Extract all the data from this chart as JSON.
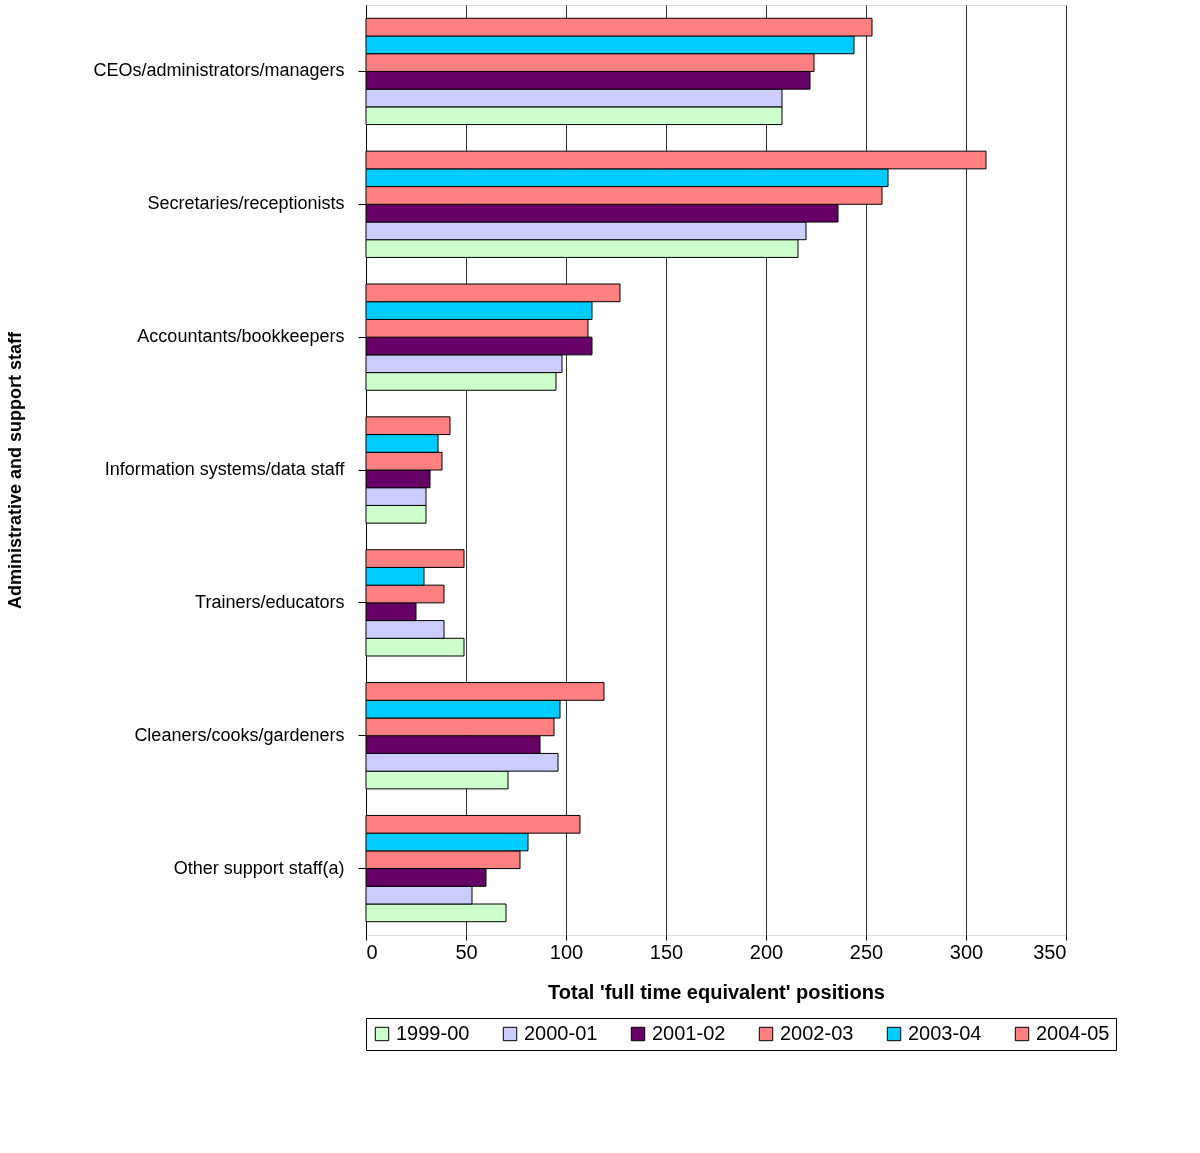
{
  "chart_data": {
    "type": "bar",
    "orientation": "horizontal",
    "xlabel": "Total 'full time equivalent' positions",
    "ylabel": "Administrative and support staff",
    "categories": [
      "CEOs/administrators/managers",
      "Secretaries/receptionists",
      "Accountants/bookkeepers",
      "Information systems/data staff",
      "Trainers/educators",
      "Cleaners/cooks/gardeners",
      "Other support staff(a)"
    ],
    "series": [
      {
        "name": "1999-00",
        "color": "#ccffcc",
        "values": [
          208,
          216,
          95,
          30,
          49,
          71,
          70
        ]
      },
      {
        "name": "2000-01",
        "color": "#ccccff",
        "values": [
          208,
          220,
          98,
          30,
          39,
          96,
          53
        ]
      },
      {
        "name": "2001-02",
        "color": "#660066",
        "values": [
          222,
          236,
          113,
          32,
          25,
          87,
          60
        ]
      },
      {
        "name": "2002-03",
        "color": "#ff8080",
        "values": [
          224,
          258,
          111,
          38,
          39,
          94,
          77
        ]
      },
      {
        "name": "2003-04",
        "color": "#00ccff",
        "values": [
          244,
          261,
          113,
          36,
          29,
          97,
          81
        ]
      },
      {
        "name": "2004-05",
        "color": "#ff8080",
        "values": [
          253,
          310,
          127,
          42,
          49,
          119,
          107
        ]
      }
    ],
    "xlim": [
      0,
      350
    ],
    "xticks": [
      0,
      50,
      100,
      150,
      200,
      250,
      300,
      350
    ],
    "grid": "x",
    "legend": "bottom"
  }
}
